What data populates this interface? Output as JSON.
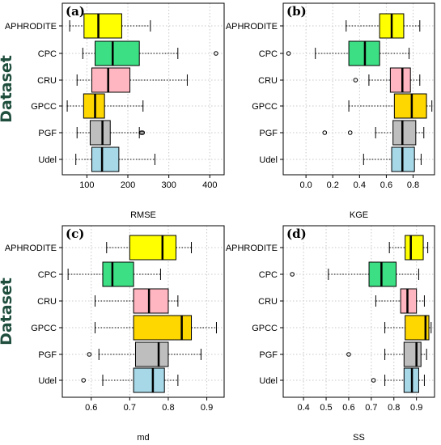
{
  "chart_data": [
    {
      "type": "boxplot",
      "panel_label": "(a)",
      "xlabel": "RMSE",
      "ylabel": "Dataset",
      "xlim": [
        40,
        435
      ],
      "xticks": [
        100,
        200,
        300,
        400
      ],
      "grid": true,
      "categories": [
        "APHRODITE",
        "CPC",
        "CRU",
        "GPCC",
        "PGF",
        "Udel"
      ],
      "boxes": [
        {
          "name": "APHRODITE",
          "min": 58,
          "q1": 93,
          "median": 128,
          "q3": 185,
          "max": 255,
          "outliers": [],
          "color": "#ffff00"
        },
        {
          "name": "CPC",
          "min": 90,
          "q1": 120,
          "median": 163,
          "q3": 228,
          "max": 322,
          "outliers": [
            415
          ],
          "color": "#3ddf84"
        },
        {
          "name": "CRU",
          "min": 76,
          "q1": 112,
          "median": 152,
          "q3": 205,
          "max": 345,
          "outliers": [],
          "color": "#ffb6c1"
        },
        {
          "name": "GPCC",
          "min": 52,
          "q1": 92,
          "median": 120,
          "q3": 143,
          "max": 237,
          "outliers": [],
          "color": "#ffd700"
        },
        {
          "name": "PGF",
          "min": 76,
          "q1": 108,
          "median": 138,
          "q3": 157,
          "max": 228,
          "outliers": [
            233,
            236
          ],
          "color": "#bebebe"
        },
        {
          "name": "Udel",
          "min": 73,
          "q1": 112,
          "median": 137,
          "q3": 178,
          "max": 266,
          "outliers": [],
          "color": "#a6d8e8"
        }
      ]
    },
    {
      "type": "boxplot",
      "panel_label": "(b)",
      "xlabel": "KGE",
      "ylabel": "",
      "xlim": [
        -0.17,
        0.96
      ],
      "xticks": [
        0.0,
        0.2,
        0.4,
        0.6,
        0.8
      ],
      "xtick_labels": [
        "0.0",
        "0.2",
        "0.4",
        "0.6",
        "0.8"
      ],
      "grid": true,
      "categories": [
        "APHRODITE",
        "CPC",
        "CRU",
        "GPCC",
        "PGF",
        "Udel"
      ],
      "boxes": [
        {
          "name": "APHRODITE",
          "min": 0.3,
          "q1": 0.55,
          "median": 0.64,
          "q3": 0.73,
          "max": 0.85,
          "outliers": [],
          "color": "#ffff00"
        },
        {
          "name": "CPC",
          "min": 0.07,
          "q1": 0.32,
          "median": 0.44,
          "q3": 0.55,
          "max": 0.77,
          "outliers": [
            -0.13
          ],
          "color": "#3ddf84"
        },
        {
          "name": "CRU",
          "min": 0.47,
          "q1": 0.63,
          "median": 0.72,
          "q3": 0.78,
          "max": 0.85,
          "outliers": [
            0.37
          ],
          "color": "#ffb6c1"
        },
        {
          "name": "GPCC",
          "min": 0.32,
          "q1": 0.66,
          "median": 0.79,
          "q3": 0.9,
          "max": 0.94,
          "outliers": [],
          "color": "#ffd700"
        },
        {
          "name": "PGF",
          "min": 0.52,
          "q1": 0.65,
          "median": 0.72,
          "q3": 0.82,
          "max": 0.88,
          "outliers": [
            0.14,
            0.33
          ],
          "color": "#bebebe"
        },
        {
          "name": "Udel",
          "min": 0.43,
          "q1": 0.64,
          "median": 0.72,
          "q3": 0.81,
          "max": 0.86,
          "outliers": [],
          "color": "#a6d8e8"
        }
      ]
    },
    {
      "type": "boxplot",
      "panel_label": "(c)",
      "xlabel": "md",
      "ylabel": "Dataset",
      "xlim": [
        0.525,
        0.945
      ],
      "xticks": [
        0.6,
        0.7,
        0.8,
        0.9
      ],
      "xtick_labels": [
        "0.6",
        "0.7",
        "0.8",
        "0.9"
      ],
      "grid": true,
      "categories": [
        "APHRODITE",
        "CPC",
        "CRU",
        "GPCC",
        "PGF",
        "Udel"
      ],
      "boxes": [
        {
          "name": "APHRODITE",
          "min": 0.64,
          "q1": 0.7,
          "median": 0.785,
          "q3": 0.82,
          "max": 0.86,
          "outliers": [],
          "color": "#ffff00"
        },
        {
          "name": "CPC",
          "min": 0.54,
          "q1": 0.63,
          "median": 0.655,
          "q3": 0.71,
          "max": 0.78,
          "outliers": [],
          "color": "#3ddf84"
        },
        {
          "name": "CRU",
          "min": 0.61,
          "q1": 0.71,
          "median": 0.75,
          "q3": 0.8,
          "max": 0.825,
          "outliers": [],
          "color": "#ffb6c1"
        },
        {
          "name": "GPCC",
          "min": 0.61,
          "q1": 0.71,
          "median": 0.835,
          "q3": 0.86,
          "max": 0.925,
          "outliers": [],
          "color": "#ffd700"
        },
        {
          "name": "PGF",
          "min": 0.62,
          "q1": 0.715,
          "median": 0.775,
          "q3": 0.8,
          "max": 0.885,
          "outliers": [
            0.595
          ],
          "color": "#bebebe"
        },
        {
          "name": "Udel",
          "min": 0.63,
          "q1": 0.71,
          "median": 0.76,
          "q3": 0.79,
          "max": 0.825,
          "outliers": [
            0.58
          ],
          "color": "#a6d8e8"
        }
      ]
    },
    {
      "type": "boxplot",
      "panel_label": "(d)",
      "xlabel": "SS",
      "ylabel": "",
      "xlim": [
        0.31,
        0.98
      ],
      "xticks": [
        0.4,
        0.5,
        0.6,
        0.7,
        0.8,
        0.9
      ],
      "xtick_labels": [
        "0.4",
        "0.5",
        "0.6",
        "0.7",
        "0.8",
        "0.9"
      ],
      "grid": true,
      "categories": [
        "APHRODITE",
        "CPC",
        "CRU",
        "GPCC",
        "PGF",
        "Udel"
      ],
      "boxes": [
        {
          "name": "APHRODITE",
          "min": 0.78,
          "q1": 0.85,
          "median": 0.875,
          "q3": 0.93,
          "max": 0.95,
          "outliers": [],
          "color": "#ffff00"
        },
        {
          "name": "CPC",
          "min": 0.51,
          "q1": 0.69,
          "median": 0.745,
          "q3": 0.81,
          "max": 0.91,
          "outliers": [
            0.35
          ],
          "color": "#3ddf84"
        },
        {
          "name": "CRU",
          "min": 0.72,
          "q1": 0.83,
          "median": 0.86,
          "q3": 0.9,
          "max": 0.935,
          "outliers": [],
          "color": "#ffb6c1"
        },
        {
          "name": "GPCC",
          "min": 0.76,
          "q1": 0.85,
          "median": 0.94,
          "q3": 0.955,
          "max": 0.965,
          "outliers": [],
          "color": "#ffd700"
        },
        {
          "name": "PGF",
          "min": 0.76,
          "q1": 0.845,
          "median": 0.9,
          "q3": 0.92,
          "max": 0.945,
          "outliers": [
            0.6
          ],
          "color": "#bebebe"
        },
        {
          "name": "Udel",
          "min": 0.76,
          "q1": 0.845,
          "median": 0.88,
          "q3": 0.91,
          "max": 0.935,
          "outliers": [
            0.71
          ],
          "color": "#a6d8e8"
        }
      ]
    }
  ]
}
